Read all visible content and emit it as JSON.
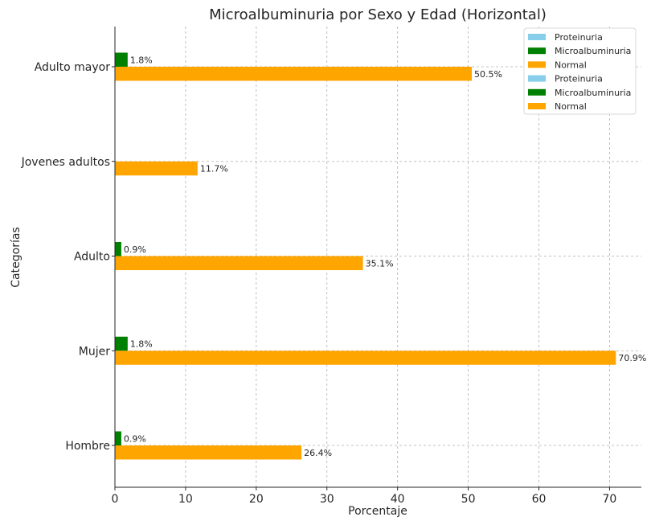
{
  "chart_data": {
    "type": "bar",
    "orientation": "horizontal",
    "title": "Microalbuminuria por Sexo y Edad (Horizontal)",
    "xlabel": "Porcentaje",
    "ylabel": "Categorías",
    "xlim": [
      0,
      74.5
    ],
    "xticks": [
      0,
      10,
      20,
      30,
      40,
      50,
      60,
      70
    ],
    "grid": true,
    "legend_position": "top-right",
    "categories": [
      "Hombre",
      "Mujer",
      "Adulto",
      "Jovenes adultos",
      "Adulto mayor"
    ],
    "series": [
      {
        "name": "Proteinuria",
        "color": "#87CEEB",
        "values": [
          0,
          0,
          0,
          0,
          0
        ],
        "labels": [
          "",
          "",
          "",
          "",
          ""
        ]
      },
      {
        "name": "Microalbuminuria",
        "color": "#008000",
        "values": [
          0.9,
          1.8,
          0.9,
          0,
          1.8
        ],
        "labels": [
          "0.9%",
          "1.8%",
          "0.9%",
          "",
          "1.8%"
        ]
      },
      {
        "name": "Normal",
        "color": "#FFA500",
        "values": [
          26.4,
          70.9,
          35.1,
          11.7,
          50.5
        ],
        "labels": [
          "26.4%",
          "70.9%",
          "35.1%",
          "11.7%",
          "50.5%"
        ]
      }
    ],
    "legend_entries": [
      {
        "name": "Proteinuria",
        "color": "#87CEEB"
      },
      {
        "name": "Microalbuminuria",
        "color": "#008000"
      },
      {
        "name": "Normal",
        "color": "#FFA500"
      },
      {
        "name": "Proteinuria",
        "color": "#87CEEB"
      },
      {
        "name": "Microalbuminuria",
        "color": "#008000"
      },
      {
        "name": "Normal",
        "color": "#FFA500"
      }
    ]
  }
}
